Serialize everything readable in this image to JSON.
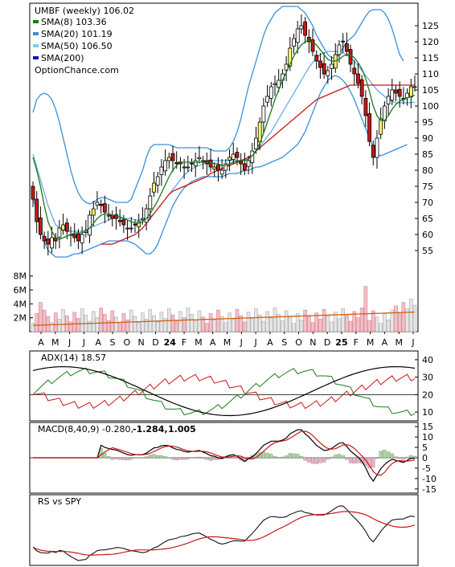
{
  "chart_data": [
    {
      "type": "candlestick",
      "legend": {
        "title": "UMBF (weekly) 106.02",
        "items": [
          {
            "label": "SMA(8) 103.36",
            "color": "#1a7a1a"
          },
          {
            "label": "SMA(20) 101.19",
            "color": "#3b8fd8"
          },
          {
            "label": "SMA(50) 106.50",
            "color": "#8cc8f0"
          },
          {
            "label": "SMA(200)",
            "color": "#1010c0"
          }
        ],
        "source": "OptionChance.com"
      },
      "y_ticks": [
        "125",
        "120",
        "115",
        "110",
        "105",
        "100",
        "95",
        "90",
        "85",
        "80",
        "75",
        "70",
        "65",
        "60",
        "55"
      ],
      "ylim": [
        49,
        132
      ],
      "x_month_labels": [
        "A",
        "M",
        "J",
        "J",
        "A",
        "S",
        "O",
        "N",
        "D",
        "24",
        "F",
        "M",
        "A",
        "M",
        "J",
        "J",
        "A",
        "S",
        "O",
        "N",
        "D",
        "25",
        "F",
        "M",
        "A",
        "M",
        "J"
      ],
      "closes": [
        71,
        64,
        60,
        58,
        57,
        59,
        58,
        62,
        63,
        61,
        60,
        59,
        58,
        60,
        61,
        66,
        68,
        70,
        69,
        67,
        66,
        65,
        65,
        64,
        63,
        62,
        62,
        63,
        64,
        65,
        68,
        72,
        76,
        78,
        81,
        83,
        84,
        83,
        82,
        82,
        81,
        81,
        82,
        83,
        84,
        83,
        82,
        81,
        81,
        80,
        80,
        82,
        84,
        85,
        84,
        82,
        80,
        83,
        86,
        90,
        95,
        100,
        103,
        106,
        107,
        108,
        110,
        113,
        118,
        121,
        124,
        125,
        122,
        120,
        117,
        114,
        112,
        110,
        111,
        113,
        116,
        119,
        120,
        117,
        113,
        110,
        107,
        103,
        97,
        89,
        84,
        90,
        96,
        100,
        103,
        105,
        104,
        103,
        102,
        104,
        106,
        106.02
      ],
      "sma8": [
        84,
        80,
        75,
        69,
        64,
        61,
        59,
        58.5,
        59,
        59.5,
        60,
        60.5,
        60.5,
        60.5,
        61,
        62,
        63.5,
        65,
        66,
        66.5,
        66.5,
        66,
        66,
        65.5,
        65,
        64.5,
        64,
        63.5,
        63.5,
        64,
        65,
        66.5,
        68.5,
        70.5,
        73,
        75.5,
        78,
        80,
        81.5,
        82.5,
        82.5,
        82.5,
        82.5,
        82.5,
        82.5,
        82.5,
        82.5,
        82.5,
        82,
        82,
        81.5,
        81.5,
        82,
        82.5,
        83,
        83,
        83,
        83.5,
        84.5,
        86,
        88.5,
        91.5,
        95,
        98.5,
        102,
        105,
        108,
        110.5,
        113,
        115.5,
        117.5,
        119,
        120,
        120.5,
        120,
        119,
        117.5,
        116,
        114.5,
        114,
        114,
        114.5,
        115.5,
        116,
        116,
        115,
        113.5,
        111.5,
        108.5,
        104.5,
        100,
        97,
        95.5,
        95.5,
        97,
        99,
        100.5,
        101.5,
        102,
        102.5,
        103,
        103.36
      ],
      "sma20": [
        85,
        81,
        77,
        73,
        69,
        66,
        63,
        62,
        61.5,
        61,
        61,
        61,
        61,
        61,
        61.5,
        62,
        62.5,
        63,
        63.5,
        64,
        64.5,
        65,
        65,
        65,
        65,
        65,
        65,
        64.5,
        64.5,
        64.5,
        65,
        65.5,
        66.5,
        68,
        69.5,
        71,
        72.5,
        74,
        75.5,
        77,
        78.5,
        79.5,
        80.5,
        81,
        81.5,
        82,
        82.5,
        83,
        83,
        83,
        83,
        83,
        83,
        83,
        83,
        83,
        83.5,
        84,
        85,
        86,
        87.5,
        89,
        90.5,
        92,
        94,
        96,
        98,
        100,
        102,
        104,
        106,
        108,
        110,
        112,
        113.5,
        115,
        116,
        116.5,
        117,
        117,
        117,
        117,
        116.5,
        116,
        115,
        114,
        112.5,
        111,
        109.5,
        108,
        106.5,
        105,
        104,
        103,
        102,
        101.5,
        101,
        101,
        101,
        101,
        101.1,
        101.19
      ],
      "sma50": [
        null,
        null,
        null,
        null,
        null,
        null,
        null,
        null,
        null,
        null,
        null,
        null,
        null,
        null,
        null,
        null,
        null,
        null,
        57,
        57,
        57,
        57,
        57.5,
        58,
        58.5,
        59,
        59.5,
        60,
        61,
        62,
        63.5,
        65,
        66.5,
        68,
        69.5,
        71,
        72.5,
        73.5,
        74,
        74.5,
        75,
        75.5,
        76,
        76.5,
        77,
        77.5,
        78,
        79,
        79.5,
        80,
        80.5,
        81,
        81.5,
        82,
        82.5,
        83,
        83.5,
        84,
        85,
        86,
        87,
        88,
        89,
        90,
        91,
        92,
        93,
        94,
        95,
        96,
        97,
        98,
        99,
        100,
        101,
        102,
        102.5,
        103,
        103.5,
        104,
        104.5,
        105,
        105.5,
        106,
        106.5,
        106.5,
        106.5,
        106.5,
        106.5,
        106.5,
        106.5,
        106.5,
        106.5,
        106.5,
        106.5,
        106.5,
        106.5,
        106.5,
        106.5,
        106.5,
        106.5,
        106.5
      ],
      "bb_upper": [
        98,
        102,
        103.5,
        104,
        103.5,
        102,
        99,
        95,
        90,
        85,
        80,
        76,
        73,
        71,
        70,
        69.5,
        70,
        71,
        71.5,
        71.5,
        71,
        70.5,
        70,
        70,
        70,
        70,
        71,
        74,
        77,
        80,
        84,
        87,
        88,
        88,
        88,
        88,
        88,
        87.5,
        87,
        87,
        87,
        87,
        87,
        87,
        87,
        87,
        87,
        86.5,
        86,
        86,
        86,
        86,
        87,
        89,
        92,
        96,
        101,
        106,
        110,
        114,
        118,
        122,
        125,
        127,
        129,
        130,
        131,
        131,
        131,
        131,
        131,
        130,
        129,
        127,
        125,
        122,
        120,
        118,
        116,
        115,
        115,
        116,
        118,
        120,
        121,
        122,
        124,
        126,
        128,
        129.5,
        130,
        130,
        130,
        129,
        127,
        124,
        120,
        116,
        114
      ],
      "bb_lower": [
        72,
        67,
        62,
        58,
        55,
        54,
        53,
        53,
        53,
        53,
        53.5,
        54,
        54,
        54.5,
        55,
        55.5,
        56,
        56.5,
        57,
        57.5,
        58,
        58,
        58,
        58,
        58,
        58,
        57.5,
        57,
        56,
        55,
        54,
        54,
        55,
        57,
        60,
        63,
        66,
        69,
        71,
        73,
        74.5,
        75.5,
        76.5,
        77,
        77.5,
        78,
        78,
        78,
        78,
        78,
        78,
        78.5,
        79,
        79,
        79,
        79.5,
        80,
        80,
        80.5,
        81,
        81,
        81.5,
        82,
        82.5,
        83,
        83.5,
        84,
        85,
        86,
        87,
        88,
        90,
        92,
        95,
        98,
        101,
        104,
        106,
        108,
        109,
        109.5,
        109,
        108,
        106.5,
        104.5,
        102,
        99,
        96,
        93,
        90,
        87,
        85,
        84.5,
        85,
        85.5,
        86,
        86.5,
        87,
        87.5,
        88
      ],
      "yellow_sma": [
        null,
        null,
        null,
        null,
        null,
        null,
        null,
        null,
        null,
        null,
        null,
        null,
        null,
        null,
        null,
        null,
        null,
        null,
        null,
        null,
        null,
        null,
        null,
        null,
        null,
        null,
        null,
        null,
        null,
        null,
        null,
        null,
        null,
        null,
        null,
        null,
        null,
        null,
        null,
        null,
        null,
        null,
        null,
        null,
        null,
        null,
        null,
        null,
        null,
        null,
        null,
        null,
        null,
        null,
        null,
        null,
        null,
        null,
        null,
        null,
        null,
        null,
        null,
        null,
        null,
        null,
        null,
        null,
        null,
        null,
        null,
        null,
        null,
        null,
        null,
        null,
        null,
        null,
        null,
        null,
        null,
        null,
        null,
        null,
        null,
        null,
        null,
        null,
        null,
        null,
        null,
        null,
        null,
        null,
        null,
        null,
        null,
        null,
        null,
        null,
        null,
        null
      ]
    },
    {
      "type": "bar",
      "panel": "volume",
      "y_ticks": [
        "8M",
        "6M",
        "4M",
        "2M"
      ],
      "ylim": [
        0,
        9
      ]
    },
    {
      "type": "line",
      "panel": "ADX",
      "title": "ADX(14) 18.57",
      "y_ticks": [
        "40",
        "30",
        "20",
        "10"
      ],
      "ylim": [
        5,
        45
      ]
    },
    {
      "type": "line",
      "panel": "MACD",
      "title": "MACD(8,40,9) -0.280,",
      "title_red": "-1.284,",
      "title_blue": "1.005",
      "y_ticks": [
        "15",
        "10",
        "5",
        "0",
        "-5",
        "-10",
        "-15"
      ],
      "ylim": [
        -17,
        17
      ]
    },
    {
      "type": "line",
      "panel": "RS",
      "title": "RS vs SPY",
      "y_ticks": []
    }
  ]
}
